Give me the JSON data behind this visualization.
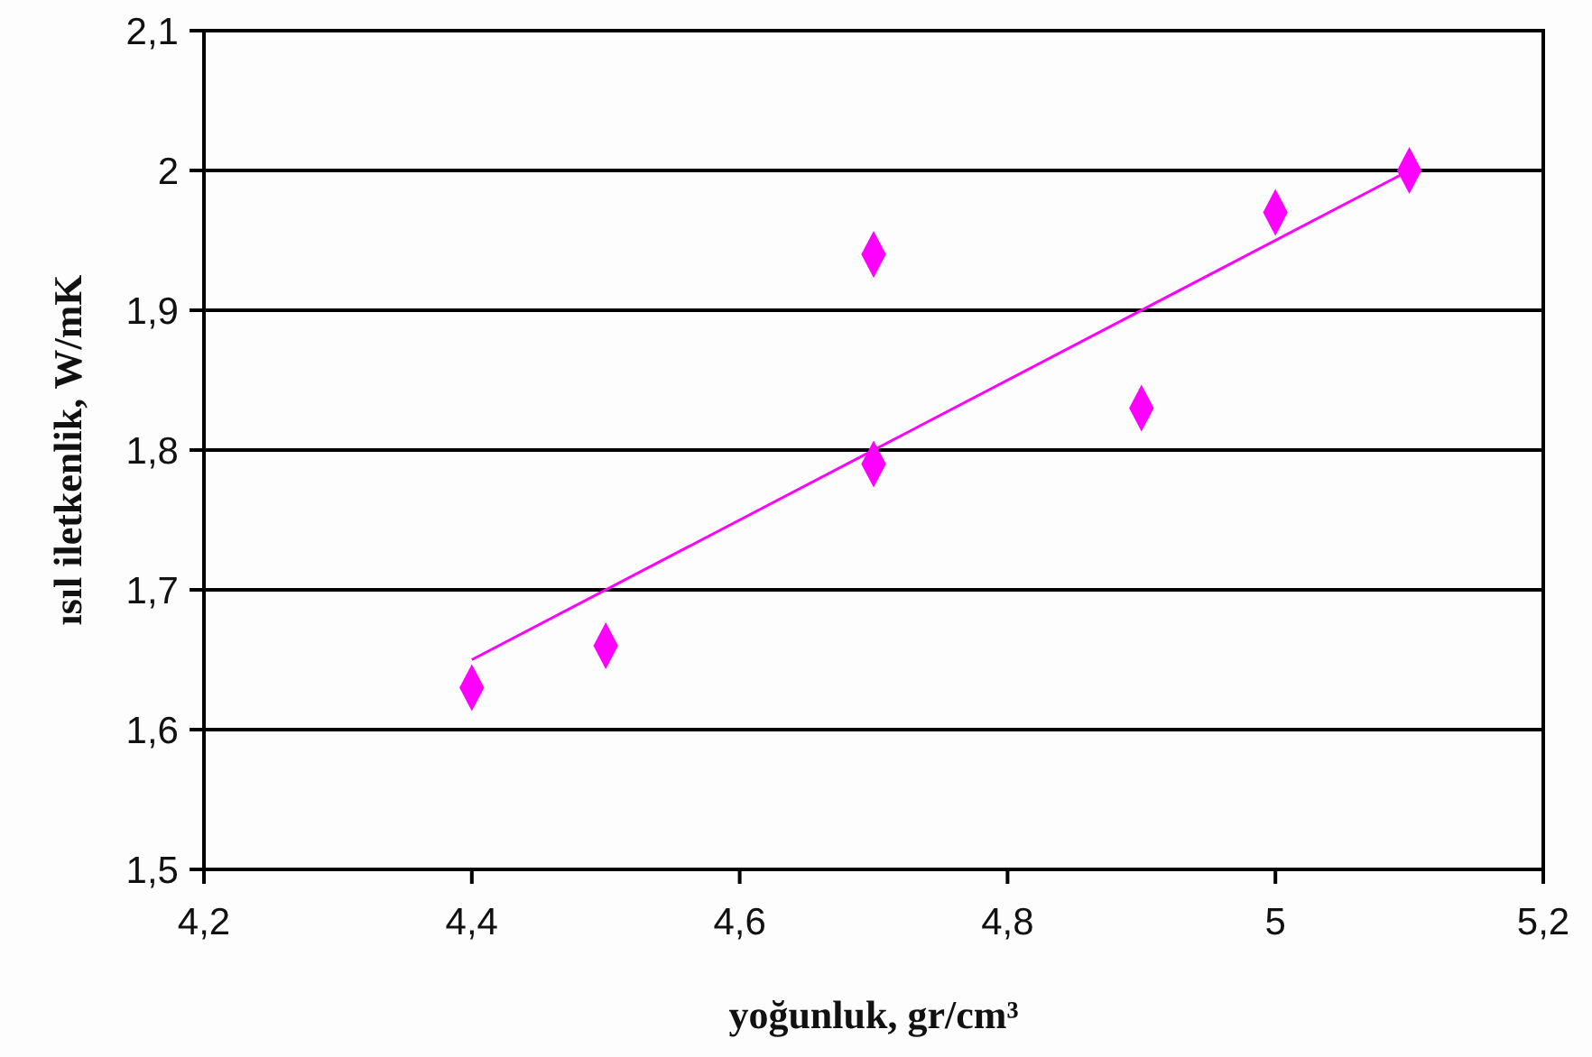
{
  "chart_data": {
    "type": "scatter",
    "xlabel": "yoğunluk, gr/cm³",
    "ylabel": "ısıl iletkenlik, W/mK",
    "marker": "diamond",
    "grid": "y",
    "xlim": [
      4.2,
      5.2
    ],
    "xticks": [
      {
        "value": 4.2,
        "label": "4,2"
      },
      {
        "value": 4.4,
        "label": "4,4"
      },
      {
        "value": 4.6,
        "label": "4,6"
      },
      {
        "value": 4.8,
        "label": "4,8"
      },
      5,
      {
        "value": 5.2,
        "label": "5,2"
      }
    ],
    "ylim": [
      1.5,
      2.1
    ],
    "yticks": [
      {
        "value": 1.5,
        "label": "1,5"
      },
      {
        "value": 1.6,
        "label": "1,6"
      },
      {
        "value": 1.7,
        "label": "1,7"
      },
      {
        "value": 1.8,
        "label": "1,8"
      },
      {
        "value": 1.9,
        "label": "1,9"
      },
      2,
      {
        "value": 2.1,
        "label": "2,1"
      }
    ],
    "series": [
      {
        "color": "#ff00ff",
        "x": [
          4.4,
          4.5,
          4.7,
          4.7,
          4.9,
          5.0,
          5.1
        ],
        "values": [
          1.63,
          1.66,
          1.94,
          1.79,
          1.83,
          1.97,
          2.0
        ]
      },
      {
        "type": "line",
        "color": "#ff00ff",
        "marker": "none",
        "x": [
          4.4,
          5.1
        ],
        "values": [
          1.65,
          2.0
        ]
      }
    ]
  }
}
